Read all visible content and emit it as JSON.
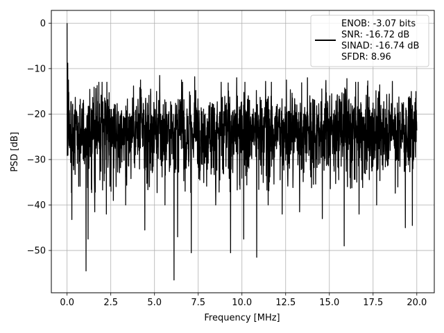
{
  "chart_data": {
    "type": "line",
    "title": "",
    "xlabel": "Frequency [MHz]",
    "ylabel": "PSD [dB]",
    "xlim": [
      -0.9,
      21.0
    ],
    "ylim": [
      -59.3,
      2.8
    ],
    "xticks": [
      0.0,
      2.5,
      5.0,
      7.5,
      10.0,
      12.5,
      15.0,
      17.5,
      20.0
    ],
    "xtick_labels": [
      "0.0",
      "2.5",
      "5.0",
      "7.5",
      "10.0",
      "12.5",
      "15.0",
      "17.5",
      "20.0"
    ],
    "yticks": [
      0,
      -10,
      -20,
      -30,
      -40,
      -50
    ],
    "ytick_labels": [
      "0",
      "−10",
      "−20",
      "−30",
      "−40",
      "−50"
    ],
    "grid": true,
    "legend_position": "top-right",
    "line_color": "#000000",
    "legend": [
      "ENOB: -3.07 bits",
      "SNR: -16.72 dB",
      "SINAD: -16.74 dB",
      "SFDR: 8.96"
    ],
    "series": [
      {
        "x_range": [
          0.0,
          20.0
        ],
        "num_points": 2048,
        "noise_floor_band": [
          -31,
          -16
        ],
        "peaks": [
          [
            0.0,
            0.0
          ],
          [
            0.04,
            -8.8
          ],
          [
            0.08,
            -12.5
          ]
        ],
        "notable_dips": [
          [
            0.27,
            -43.2
          ],
          [
            1.08,
            -54.5
          ],
          [
            1.2,
            -47.5
          ],
          [
            1.58,
            -41.5
          ],
          [
            2.25,
            -42.0
          ],
          [
            2.65,
            -39.0
          ],
          [
            3.35,
            -40.0
          ],
          [
            4.45,
            -45.5
          ],
          [
            5.6,
            -40.0
          ],
          [
            6.12,
            -56.5
          ],
          [
            6.32,
            -47.0
          ],
          [
            7.1,
            -50.5
          ],
          [
            8.5,
            -40.0
          ],
          [
            9.35,
            -50.5
          ],
          [
            10.1,
            -47.5
          ],
          [
            10.85,
            -51.5
          ],
          [
            11.5,
            -40.0
          ],
          [
            12.3,
            -42.0
          ],
          [
            13.3,
            -41.5
          ],
          [
            14.6,
            -43.0
          ],
          [
            15.85,
            -49.0
          ],
          [
            16.7,
            -42.0
          ],
          [
            17.7,
            -40.0
          ],
          [
            19.35,
            -45.0
          ],
          [
            19.75,
            -44.5
          ]
        ],
        "notable_spikes": [
          [
            4.2,
            -12.5
          ],
          [
            5.3,
            -11.5
          ],
          [
            6.55,
            -12.5
          ],
          [
            7.3,
            -11.8
          ],
          [
            9.7,
            -12.0
          ],
          [
            11.35,
            -12.8
          ],
          [
            12.55,
            -12.5
          ],
          [
            13.75,
            -12.0
          ],
          [
            14.8,
            -12.6
          ],
          [
            16.0,
            -12.2
          ],
          [
            17.2,
            -12.7
          ],
          [
            18.6,
            -12.8
          ]
        ]
      }
    ]
  }
}
